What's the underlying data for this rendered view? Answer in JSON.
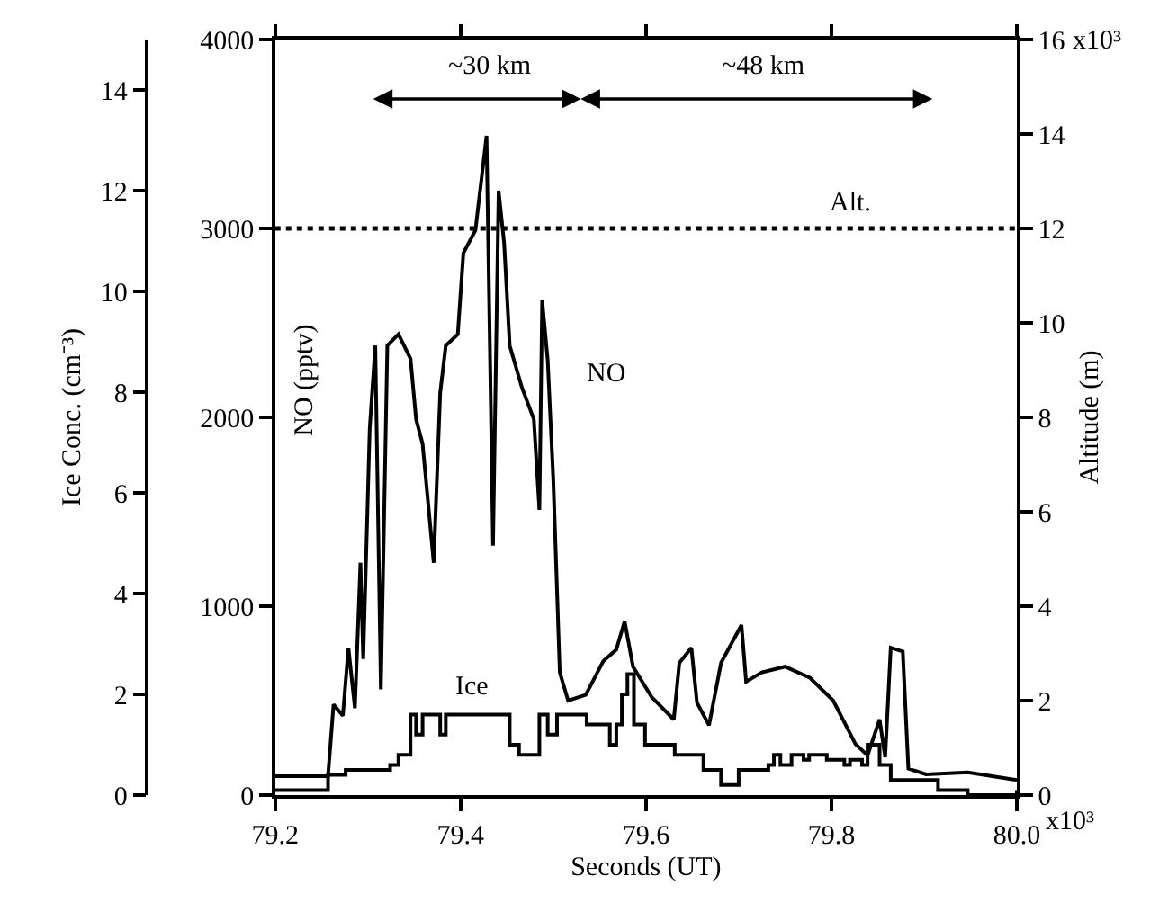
{
  "chart_data": {
    "type": "line",
    "xlabel": "Seconds (UT)",
    "ylabel": "NO (pptv)",
    "y2label": "Ice Conc. (cm⁻³)",
    "y3label": "Altitude (m)",
    "xlim": [
      79.2,
      80.0
    ],
    "xticks": [
      79.2,
      79.4,
      79.6,
      79.8,
      {
        "value": 80.0,
        "label": "80.0"
      }
    ],
    "ylim": [
      0,
      4000
    ],
    "yticks": [
      0,
      1000,
      2000,
      3000,
      4000
    ],
    "y2lim": [
      0,
      15
    ],
    "y2ticks": [
      0,
      2,
      4,
      6,
      8,
      10,
      12,
      14
    ],
    "y3lim": [
      0,
      16
    ],
    "y3ticks": [
      0,
      2,
      4,
      6,
      8,
      10,
      12,
      14,
      16
    ],
    "legend": false,
    "marker": "none",
    "series": [
      {
        "color": "#000000",
        "line_style": "solid",
        "x": [
          79.2,
          79.257,
          79.263,
          79.273,
          79.279,
          79.286,
          79.292,
          79.295,
          79.302,
          79.308,
          79.314,
          79.321,
          79.333,
          79.346,
          79.352,
          79.359,
          79.371,
          79.378,
          79.384,
          79.397,
          79.403,
          79.416,
          79.428,
          79.435,
          79.441,
          79.447,
          79.453,
          79.466,
          79.479,
          79.485,
          79.488,
          79.494,
          79.5,
          79.507,
          79.516,
          79.535,
          79.554,
          79.568,
          79.577,
          79.586,
          79.606,
          79.63,
          79.636,
          79.649,
          79.655,
          79.668,
          79.681,
          79.703,
          79.708,
          79.725,
          79.75,
          79.777,
          79.802,
          79.826,
          79.839,
          79.852,
          79.858,
          79.864,
          79.877,
          79.883,
          79.902,
          79.947,
          80.0
        ],
        "values": [
          100,
          100,
          480,
          420,
          780,
          460,
          1230,
          720,
          1940,
          2380,
          560,
          2380,
          2440,
          2310,
          1990,
          1860,
          1230,
          2130,
          2380,
          2440,
          2870,
          2990,
          3490,
          1320,
          3200,
          2920,
          2380,
          2160,
          1990,
          1510,
          2620,
          2300,
          1670,
          650,
          500,
          530,
          710,
          770,
          920,
          680,
          520,
          400,
          700,
          780,
          490,
          370,
          700,
          900,
          600,
          650,
          680,
          620,
          500,
          270,
          210,
          400,
          200,
          780,
          760,
          140,
          110,
          120,
          80
        ]
      },
      {
        "type": "step",
        "axis": "y2",
        "color": "#000000",
        "line_style": "solid",
        "x": [
          79.2,
          79.225,
          79.257,
          79.276,
          79.308,
          79.324,
          79.333,
          79.346,
          79.352,
          79.359,
          79.371,
          79.378,
          79.384,
          79.409,
          79.435,
          79.453,
          79.463,
          79.475,
          79.485,
          79.494,
          79.504,
          79.529,
          79.536,
          79.549,
          79.561,
          79.568,
          79.574,
          79.58,
          79.587,
          79.599,
          79.631,
          79.662,
          79.681,
          79.7,
          79.732,
          79.738,
          79.745,
          79.757,
          79.77,
          79.776,
          79.795,
          79.814,
          79.82,
          79.833,
          79.839,
          79.852,
          79.864,
          79.896,
          79.915,
          79.947,
          80.0
        ],
        "values": [
          0.1,
          0.1,
          0.4,
          0.5,
          0.5,
          0.6,
          0.8,
          1.6,
          1.2,
          1.6,
          1.6,
          1.2,
          1.6,
          1.6,
          1.6,
          1.0,
          0.8,
          0.8,
          1.6,
          1.2,
          1.6,
          1.6,
          1.4,
          1.4,
          1.0,
          1.4,
          2.0,
          2.4,
          1.4,
          1.0,
          0.8,
          0.5,
          0.2,
          0.5,
          0.6,
          0.8,
          0.6,
          0.8,
          0.7,
          0.8,
          0.7,
          0.6,
          0.7,
          0.6,
          1.0,
          0.6,
          0.3,
          0.3,
          0.1,
          0.0,
          0.1
        ]
      },
      {
        "axis": "y3",
        "color": "#000000",
        "line_style": "dotted",
        "x": [
          79.2,
          80.0
        ],
        "values": [
          12.0,
          12.0
        ]
      }
    ],
    "annotations": [
      "~30 km",
      "~48 km",
      "Alt.",
      "NO",
      "Ice",
      "x10³",
      "x10³"
    ]
  }
}
